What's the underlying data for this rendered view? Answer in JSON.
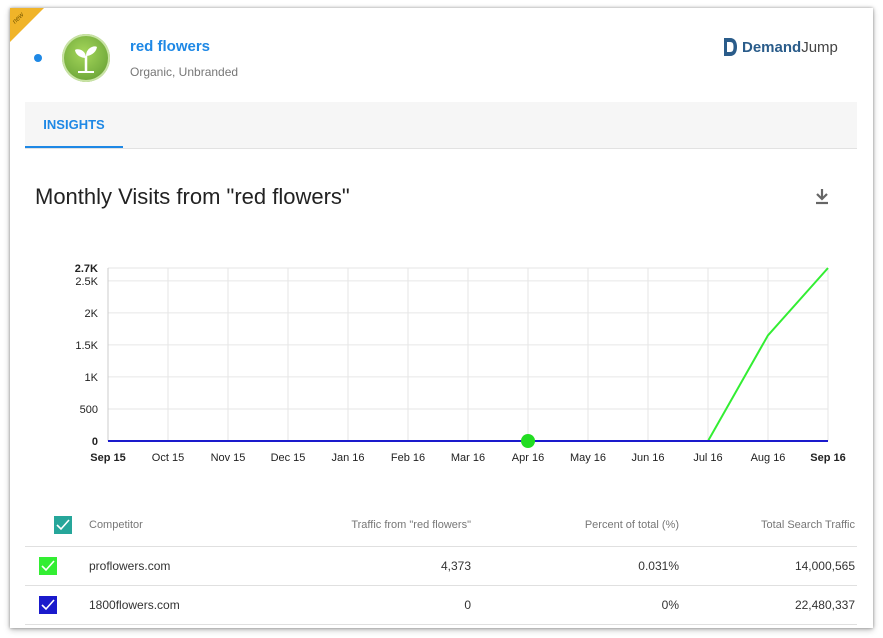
{
  "header": {
    "ribbon_label": "new",
    "keyword": "red flowers",
    "subtitle": "Organic, Unbranded",
    "logo": {
      "part1": "Demand",
      "part2": "Jump"
    }
  },
  "tabs": [
    {
      "label": "INSIGHTS"
    }
  ],
  "chart_title": "Monthly Visits from \"red flowers\"",
  "download_icon": "download-icon",
  "chart_data": {
    "type": "line",
    "x": [
      "Sep 15",
      "Oct 15",
      "Nov 15",
      "Dec 15",
      "Jan 16",
      "Feb 16",
      "Mar 16",
      "Apr 16",
      "May 16",
      "Jun 16",
      "Jul 16",
      "Aug 16",
      "Sep 16"
    ],
    "y_ticks": [
      "0",
      "500",
      "1K",
      "1.5K",
      "2K",
      "2.5K",
      "2.7K"
    ],
    "ylim": [
      0,
      2700
    ],
    "grid": true,
    "series": [
      {
        "name": "proflowers.com",
        "color": "#33ee33",
        "values": [
          0,
          0,
          0,
          0,
          0,
          0,
          0,
          0,
          0,
          0,
          0,
          1650,
          2700
        ]
      },
      {
        "name": "1800flowers.com",
        "color": "#1a1acc",
        "values": [
          0,
          0,
          0,
          0,
          0,
          0,
          0,
          0,
          0,
          0,
          0,
          0,
          0
        ]
      }
    ],
    "highlight_point": {
      "series": "proflowers.com",
      "x": "Apr 16",
      "value": 0
    }
  },
  "table": {
    "headers": [
      "Competitor",
      "Traffic from \"red flowers\"",
      "Percent of total (%)",
      "Total Search Traffic"
    ],
    "header_check_color": "#26a69a",
    "rows": [
      {
        "name": "proflowers.com",
        "traffic": "4,373",
        "percent": "0.031%",
        "total": "14,000,565",
        "color": "#33ee33"
      },
      {
        "name": "1800flowers.com",
        "traffic": "0",
        "percent": "0%",
        "total": "22,480,337",
        "color": "#1a1acc"
      }
    ]
  }
}
